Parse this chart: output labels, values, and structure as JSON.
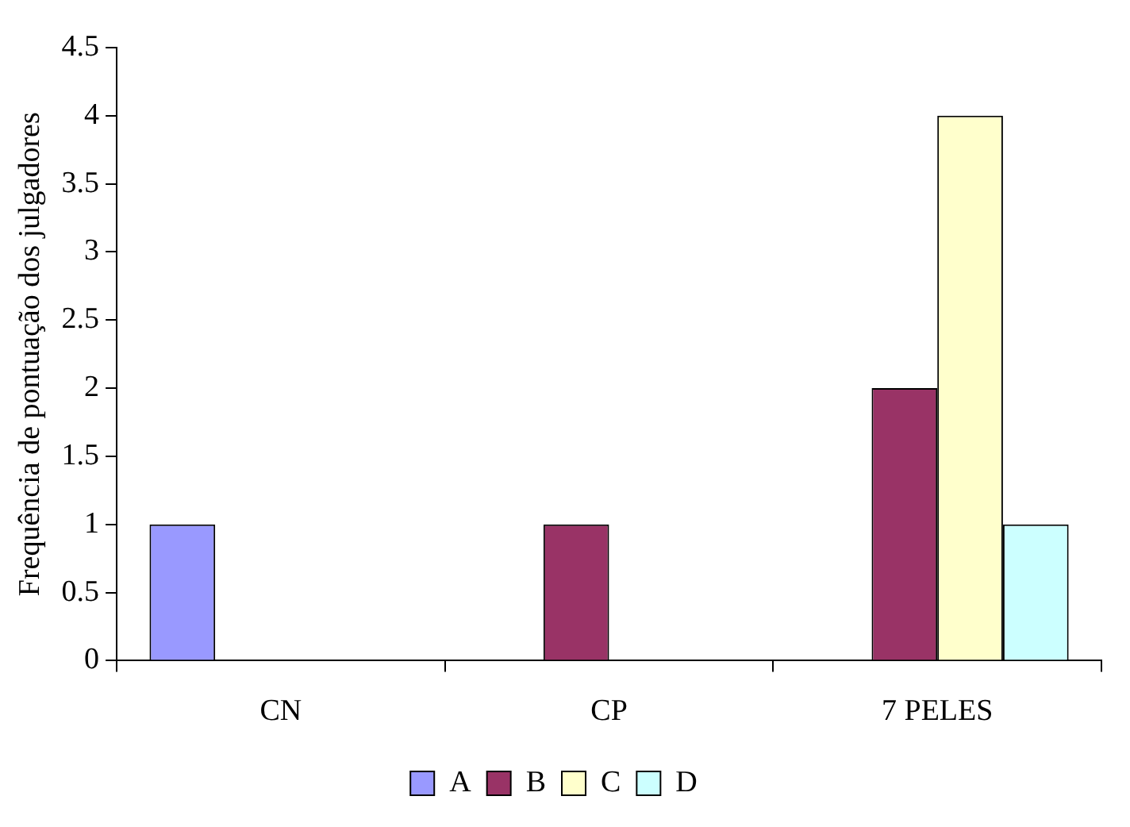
{
  "chart_data": {
    "type": "bar",
    "ylabel": "Frequência de pontuação dos julgadores",
    "categories": [
      "CN",
      "CP",
      "7 PELES"
    ],
    "series": [
      {
        "name": "A",
        "color": "#9999ff",
        "values": [
          1,
          0,
          0
        ]
      },
      {
        "name": "B",
        "color": "#993366",
        "values": [
          0,
          1,
          2
        ]
      },
      {
        "name": "C",
        "color": "#ffffcc",
        "values": [
          0,
          0,
          4
        ]
      },
      {
        "name": "D",
        "color": "#ccffff",
        "values": [
          0,
          0,
          1
        ]
      }
    ],
    "ylim": [
      0,
      4.5
    ],
    "yticks": [
      0,
      0.5,
      1,
      1.5,
      2,
      2.5,
      3,
      3.5,
      4,
      4.5
    ],
    "grid": false,
    "legend": "bottom"
  }
}
